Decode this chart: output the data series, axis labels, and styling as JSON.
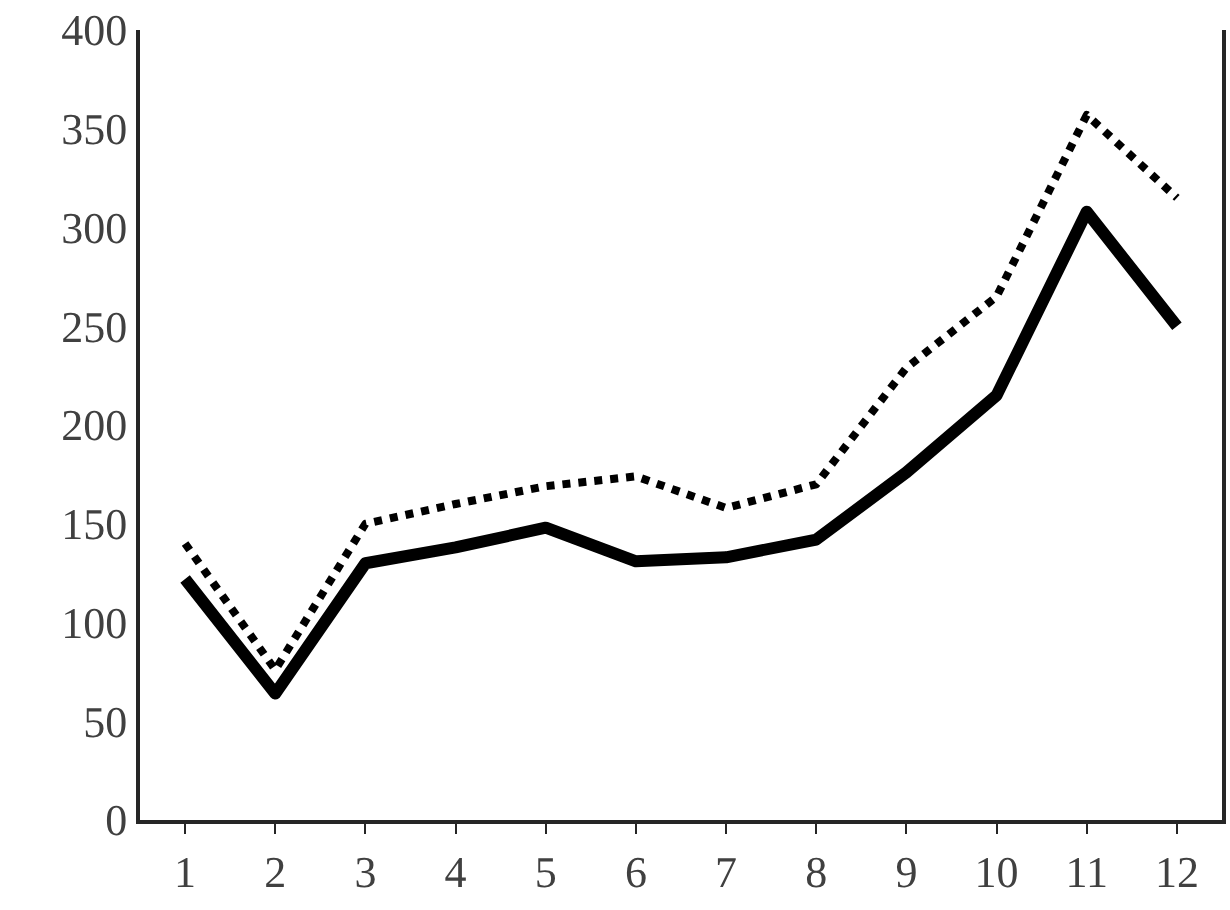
{
  "chart_data": {
    "type": "line",
    "x": [
      1,
      2,
      3,
      4,
      5,
      6,
      7,
      8,
      9,
      10,
      11,
      12
    ],
    "xlim": [
      0.5,
      12.5
    ],
    "xticks": [
      1,
      2,
      3,
      4,
      5,
      6,
      7,
      8,
      9,
      10,
      11,
      12
    ],
    "ylim": [
      0,
      400
    ],
    "yticks": [
      0,
      50,
      100,
      150,
      200,
      250,
      300,
      350,
      400
    ],
    "marker": "none",
    "series": [
      {
        "color": "#000000",
        "line_style": "solid",
        "values": [
          122,
          64,
          130,
          138,
          148,
          131,
          133,
          142,
          176,
          215,
          308,
          250
        ]
      },
      {
        "color": "#000000",
        "line_style": "dotted",
        "values": [
          140,
          76,
          150,
          160,
          169,
          174,
          158,
          170,
          229,
          265,
          357,
          315
        ]
      }
    ]
  }
}
